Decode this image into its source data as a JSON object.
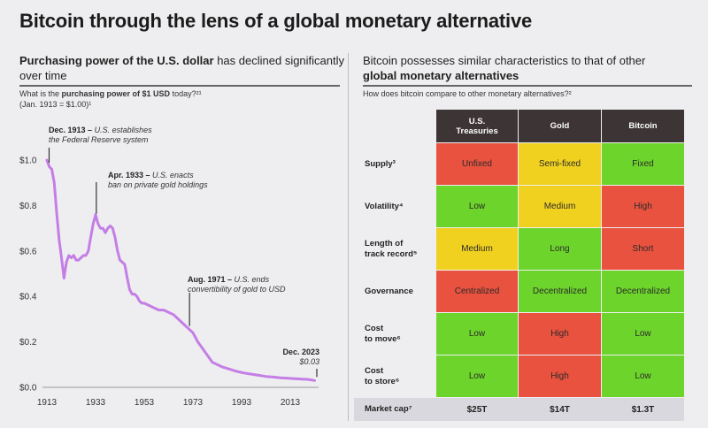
{
  "title": "Bitcoin through the lens of a global monetary alternative",
  "left": {
    "heading_bold": "Purchasing power of the U.S. dollar",
    "heading_rest": " has declined significantly over time",
    "question_pre": "What is the ",
    "question_bold": "purchasing power of $1 USD",
    "question_post": " today?²¹",
    "baseline": "(Jan. 1913 = $1.00)¹"
  },
  "chart_data": {
    "type": "line",
    "title": "",
    "xlabel": "",
    "ylabel": "",
    "xlim": [
      1913,
      2023
    ],
    "ylim": [
      0,
      1.0
    ],
    "grid": false,
    "color": "#c47ee6",
    "xticks": [
      "1913",
      "1933",
      "1953",
      "1973",
      "1993",
      "2013"
    ],
    "yticks": [
      "$1.0",
      "$0.8",
      "$0.6",
      "$0.4",
      "$0.2",
      "$0.0"
    ],
    "ytick_values": [
      1.0,
      0.8,
      0.6,
      0.4,
      0.2,
      0.0
    ],
    "x": [
      1913,
      1914,
      1915,
      1916,
      1917,
      1918,
      1919,
      1920,
      1921,
      1922,
      1923,
      1924,
      1925,
      1926,
      1927,
      1928,
      1929,
      1930,
      1931,
      1932,
      1933,
      1934,
      1935,
      1936,
      1937,
      1938,
      1939,
      1940,
      1941,
      1942,
      1943,
      1944,
      1945,
      1946,
      1947,
      1948,
      1949,
      1950,
      1951,
      1952,
      1953,
      1955,
      1957,
      1959,
      1961,
      1963,
      1965,
      1967,
      1969,
      1971,
      1973,
      1975,
      1977,
      1979,
      1981,
      1983,
      1985,
      1988,
      1991,
      1994,
      1997,
      2000,
      2003,
      2006,
      2009,
      2012,
      2015,
      2018,
      2020,
      2022,
      2023
    ],
    "y": [
      1.0,
      0.97,
      0.96,
      0.9,
      0.77,
      0.65,
      0.57,
      0.48,
      0.55,
      0.58,
      0.57,
      0.58,
      0.56,
      0.56,
      0.57,
      0.58,
      0.58,
      0.6,
      0.66,
      0.72,
      0.76,
      0.72,
      0.7,
      0.7,
      0.68,
      0.7,
      0.71,
      0.7,
      0.66,
      0.6,
      0.56,
      0.55,
      0.54,
      0.48,
      0.43,
      0.41,
      0.41,
      0.4,
      0.38,
      0.37,
      0.37,
      0.36,
      0.35,
      0.34,
      0.34,
      0.33,
      0.32,
      0.3,
      0.28,
      0.26,
      0.24,
      0.2,
      0.17,
      0.14,
      0.11,
      0.1,
      0.09,
      0.08,
      0.07,
      0.063,
      0.058,
      0.053,
      0.048,
      0.045,
      0.042,
      0.04,
      0.038,
      0.036,
      0.035,
      0.032,
      0.03
    ],
    "annotations": [
      {
        "x": 1913.9,
        "date": "Dec. 1913 –",
        "text": "U.S. establishes\nthe Federal Reserve system"
      },
      {
        "x": 1933.3,
        "date": "Apr. 1933 –",
        "text": "U.S. enacts\nban on private gold holdings"
      },
      {
        "x": 1971.6,
        "date": "Aug. 1971 –",
        "text": "U.S. ends\nconvertibility of gold to USD"
      },
      {
        "x": 2023.9,
        "date": "Dec. 2023",
        "text": "\n$0.03"
      }
    ]
  },
  "right": {
    "heading_pre": "Bitcoin possesses similar characteristics to that of other ",
    "heading_bold": "global monetary alternatives",
    "question": "How does bitcoin compare to other monetary alternatives?²"
  },
  "table": {
    "colors": {
      "red": "#e8523f",
      "yellow": "#f1d11f",
      "green": "#6dd42b",
      "header": "#3d3435",
      "band": "#d9d8de"
    },
    "columns": [
      "U.S.\nTreasuries",
      "Gold",
      "Bitcoin"
    ],
    "rows": [
      {
        "label": "Supply³",
        "cells": [
          {
            "text": "Unfixed",
            "rating": "red"
          },
          {
            "text": "Semi-fixed",
            "rating": "yellow"
          },
          {
            "text": "Fixed",
            "rating": "green"
          }
        ]
      },
      {
        "label": "Volatility⁴",
        "cells": [
          {
            "text": "Low",
            "rating": "green"
          },
          {
            "text": "Medium",
            "rating": "yellow"
          },
          {
            "text": "High",
            "rating": "red"
          }
        ]
      },
      {
        "label": "Length of\ntrack record⁵",
        "cells": [
          {
            "text": "Medium",
            "rating": "yellow"
          },
          {
            "text": "Long",
            "rating": "green"
          },
          {
            "text": "Short",
            "rating": "red"
          }
        ]
      },
      {
        "label": "Governance",
        "cells": [
          {
            "text": "Centralized",
            "rating": "red"
          },
          {
            "text": "Decentralized",
            "rating": "green"
          },
          {
            "text": "Decentralized",
            "rating": "green"
          }
        ]
      },
      {
        "label": "Cost\nto move⁶",
        "cells": [
          {
            "text": "Low",
            "rating": "green"
          },
          {
            "text": "High",
            "rating": "red"
          },
          {
            "text": "Low",
            "rating": "green"
          }
        ]
      },
      {
        "label": "Cost\nto store⁶",
        "cells": [
          {
            "text": "Low",
            "rating": "green"
          },
          {
            "text": "High",
            "rating": "red"
          },
          {
            "text": "Low",
            "rating": "green"
          }
        ]
      }
    ],
    "market_cap": {
      "label": "Market cap⁷",
      "values": [
        "$25T",
        "$14T",
        "$1.3T"
      ]
    }
  }
}
